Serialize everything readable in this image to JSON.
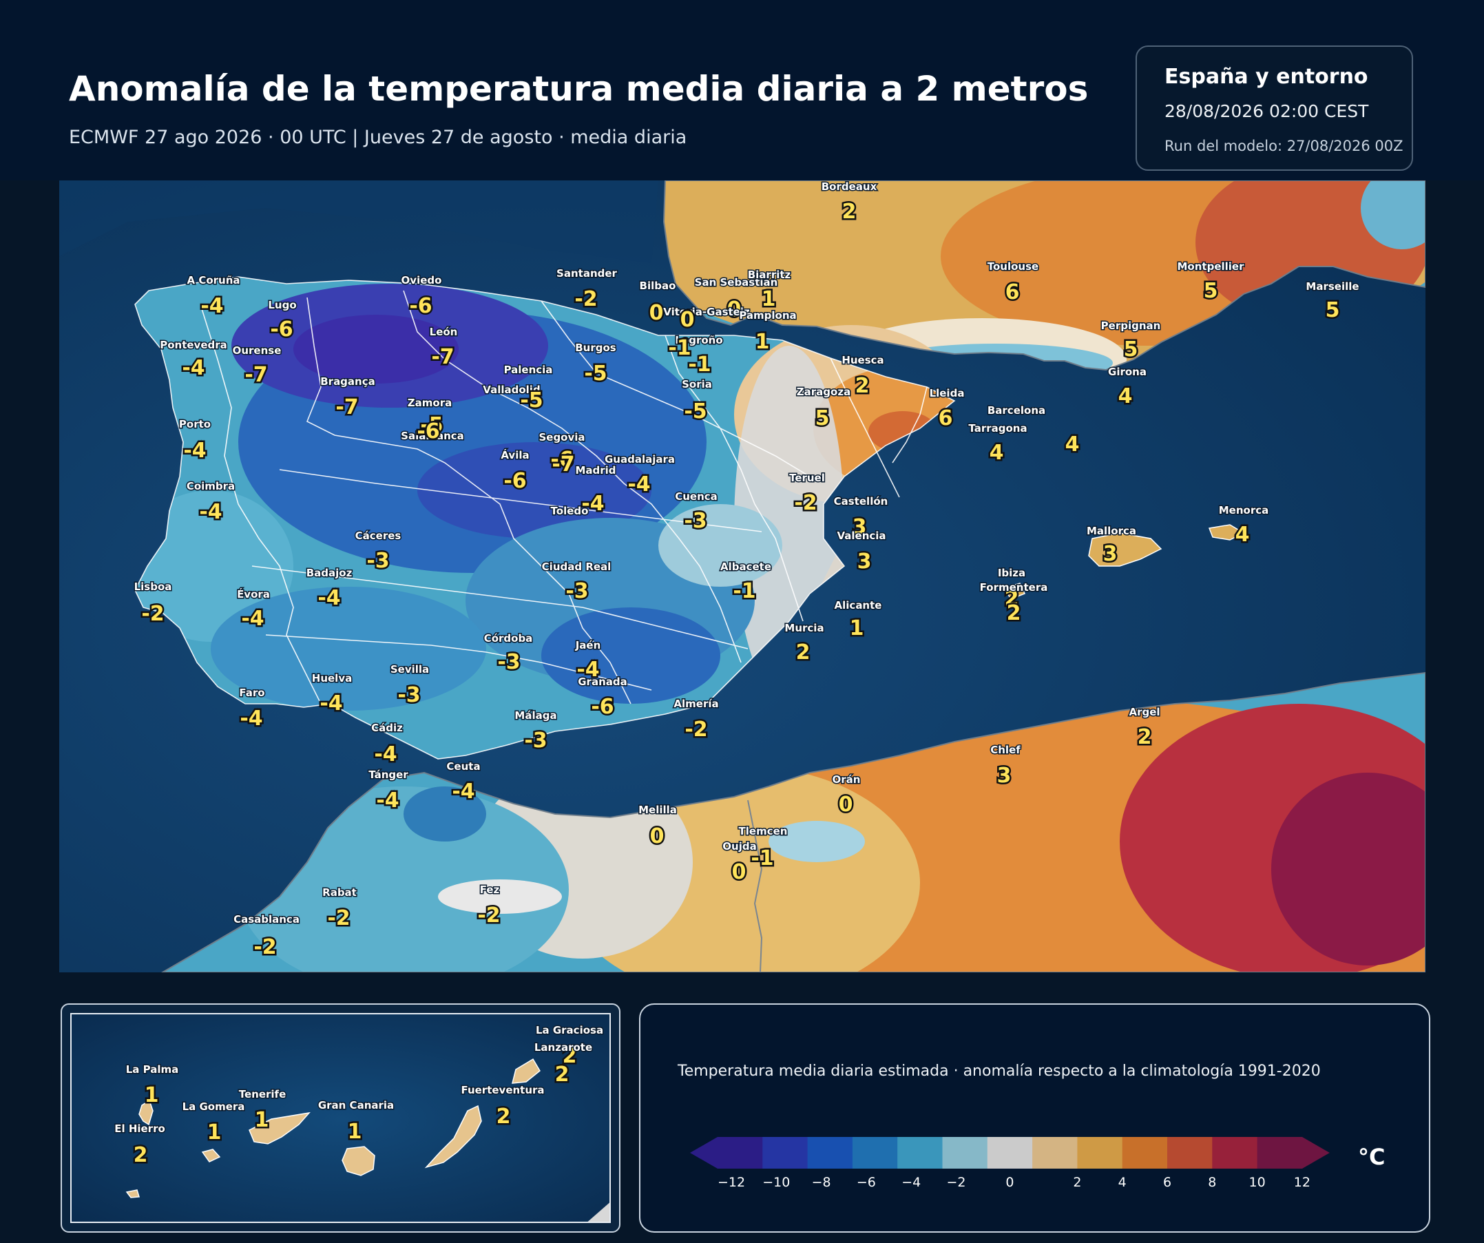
{
  "header": {
    "title": "Anomalía de la temperatura media diaria a 2 metros",
    "subtitle": "ECMWF 27 ago 2026 · 00 UTC  |  Jueves 27 de agosto · media diaria"
  },
  "info": {
    "region": "España y entorno",
    "datetime": "28/08/2026  02:00 CEST",
    "run": "Run del modelo: 27/08/2026 00Z"
  },
  "stations": [
    {
      "name": "A Coruña",
      "value": "-4"
    },
    {
      "name": "Lugo",
      "value": "-6"
    },
    {
      "name": "Oviedo",
      "value": "-6"
    },
    {
      "name": "Santander",
      "value": "-2"
    },
    {
      "name": "Bilbao",
      "value": "0"
    },
    {
      "name": "San Sebastián",
      "value": "0"
    },
    {
      "name": "Biarritz",
      "value": "1"
    },
    {
      "name": "Vitoria-Gasteiz",
      "value": "0"
    },
    {
      "name": "Pamplona",
      "value": "1"
    },
    {
      "name": "León",
      "value": "-7"
    },
    {
      "name": "Pontevedra",
      "value": "-4"
    },
    {
      "name": "Ourense",
      "value": "-7"
    },
    {
      "name": "Burgos",
      "value": "-5"
    },
    {
      "name": "Logroño",
      "value": "-1"
    },
    {
      "name": "Palencia",
      "value": "-1"
    },
    {
      "name": "Bragança",
      "value": "-7"
    },
    {
      "name": "Valladolid",
      "value": "-5"
    },
    {
      "name": "Soria",
      "value": "-5"
    },
    {
      "name": "Zamora",
      "value": "-5"
    },
    {
      "name": "Porto",
      "value": "-4"
    },
    {
      "name": "Salamanca",
      "value": "-6"
    },
    {
      "name": "Segovia",
      "value": "-6"
    },
    {
      "name": "Ávila",
      "value": "-6"
    },
    {
      "name": "Madrid",
      "value": "-7"
    },
    {
      "name": "Guadalajara",
      "value": "-4"
    },
    {
      "name": "Coimbra",
      "value": "-4"
    },
    {
      "name": "Toledo",
      "value": "-4"
    },
    {
      "name": "Cuenca",
      "value": "-3"
    },
    {
      "name": "Cáceres",
      "value": "-3"
    },
    {
      "name": "Badajoz",
      "value": "-4"
    },
    {
      "name": "Ciudad Real",
      "value": "-3"
    },
    {
      "name": "Albacete",
      "value": "-1"
    },
    {
      "name": "Lisboa",
      "value": "-2"
    },
    {
      "name": "Évora",
      "value": "-4"
    },
    {
      "name": "Córdoba",
      "value": "-3"
    },
    {
      "name": "Jaén",
      "value": "-4"
    },
    {
      "name": "Huelva",
      "value": "-4"
    },
    {
      "name": "Sevilla",
      "value": "-3"
    },
    {
      "name": "Granada",
      "value": "-6"
    },
    {
      "name": "Faro",
      "value": "-4"
    },
    {
      "name": "Málaga",
      "value": "-3"
    },
    {
      "name": "Almería",
      "value": "-2"
    },
    {
      "name": "Cádiz",
      "value": "-4"
    },
    {
      "name": "Tánger",
      "value": "-4"
    },
    {
      "name": "Ceuta",
      "value": "-4"
    },
    {
      "name": "Huesca",
      "value": "2"
    },
    {
      "name": "Zaragoza",
      "value": "5"
    },
    {
      "name": "Lleida",
      "value": "6"
    },
    {
      "name": "Tarragona",
      "value": "4"
    },
    {
      "name": "Barcelona",
      "value": "4"
    },
    {
      "name": "Girona",
      "value": "4"
    },
    {
      "name": "Perpignan",
      "value": "5"
    },
    {
      "name": "Teruel",
      "value": "-2"
    },
    {
      "name": "Castellón",
      "value": "3"
    },
    {
      "name": "Valencia",
      "value": "3"
    },
    {
      "name": "Alicante",
      "value": "1"
    },
    {
      "name": "Murcia",
      "value": "2"
    },
    {
      "name": "Bordeaux",
      "value": "2"
    },
    {
      "name": "Toulouse",
      "value": "6"
    },
    {
      "name": "Montpellier",
      "value": "5"
    },
    {
      "name": "Marseille",
      "value": "5"
    },
    {
      "name": "Mallorca",
      "value": "3"
    },
    {
      "name": "Menorca",
      "value": "4"
    },
    {
      "name": "Ibiza",
      "value": "2"
    },
    {
      "name": "Formentera",
      "value": "2"
    },
    {
      "name": "Melilla",
      "value": "0"
    },
    {
      "name": "Orán",
      "value": "0"
    },
    {
      "name": "Tlemcen",
      "value": "-1"
    },
    {
      "name": "Oujda",
      "value": "0"
    },
    {
      "name": "Chlef",
      "value": "3"
    },
    {
      "name": "Argel",
      "value": "2"
    },
    {
      "name": "Rabat",
      "value": "-2"
    },
    {
      "name": "Casablanca",
      "value": "-2"
    },
    {
      "name": "Fez",
      "value": "-2"
    }
  ],
  "canarias": [
    {
      "name": "La Graciosa",
      "value": "2"
    },
    {
      "name": "Lanzarote",
      "value": "2"
    },
    {
      "name": "La Palma",
      "value": "1"
    },
    {
      "name": "Tenerife",
      "value": "1"
    },
    {
      "name": "La Gomera",
      "value": "1"
    },
    {
      "name": "Gran Canaria",
      "value": "1"
    },
    {
      "name": "Fuerteventura",
      "value": "2"
    },
    {
      "name": "El Hierro",
      "value": "2"
    }
  ],
  "legend": {
    "title": "Temperatura media diaria estimada · anomalía respecto a la climatología 1991-2020",
    "unit": "°C",
    "ticks": [
      "−12",
      "−10",
      "−8",
      "−6",
      "−4",
      "−2",
      "0",
      "2",
      "4",
      "6",
      "8",
      "10",
      "12"
    ],
    "colors": [
      "#2b1d86",
      "#2535a3",
      "#1850b0",
      "#1f6faf",
      "#3a96bb",
      "#86b8c8",
      "#cbcbcb",
      "#d4b483",
      "#cf9a45",
      "#c8702a",
      "#b64a30",
      "#97213a",
      "#6e1541"
    ]
  }
}
